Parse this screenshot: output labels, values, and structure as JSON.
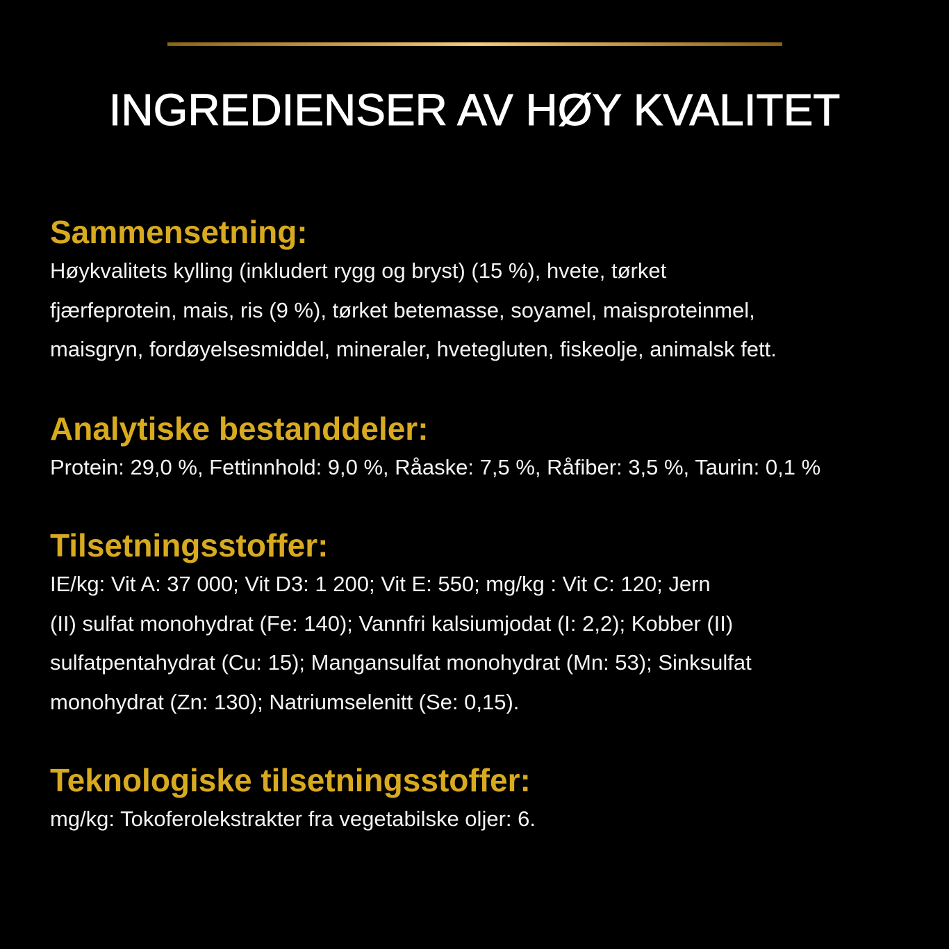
{
  "title": "INGREDIENSER AV HØY KVALITET",
  "sections": [
    {
      "heading": "Sammensetning:",
      "lines": [
        "Høykvalitets kylling (inkludert rygg og bryst) (15 %), hvete, tørket",
        "fjærfeprotein, mais, ris (9 %), tørket betemasse, soyamel, maisproteinmel,",
        "maisgryn, fordøyelsesmiddel, mineraler, hvetegluten, fiskeolje, animalsk fett."
      ]
    },
    {
      "heading": "Analytiske bestanddeler:",
      "lines": [
        "Protein: 29,0 %, Fettinnhold: 9,0 %, Råaske: 7,5 %, Råfiber: 3,5 %, Taurin: 0,1 %"
      ]
    },
    {
      "heading": "Tilsetningsstoffer:",
      "lines": [
        "IE/kg: Vit A: 37 000; Vit D3: 1 200; Vit E: 550; mg/kg : Vit C: 120; Jern",
        "(II) sulfat monohydrat (Fe: 140); Vannfri kalsiumjodat (I: 2,2); Kobber (II)",
        "sulfatpentahydrat (Cu: 15); Mangansulfat monohydrat (Mn: 53); Sinksulfat",
        "monohydrat (Zn: 130); Natriumselenitt (Se: 0,15)."
      ]
    },
    {
      "heading": "Teknologiske tilsetningsstoffer:",
      "lines": [
        "mg/kg: Tokoferolekstrakter fra vegetabilske oljer: 6."
      ]
    }
  ],
  "colors": {
    "background": "#000000",
    "heading": "#d8aa1f",
    "accent_rule": "#f4cf7c"
  }
}
